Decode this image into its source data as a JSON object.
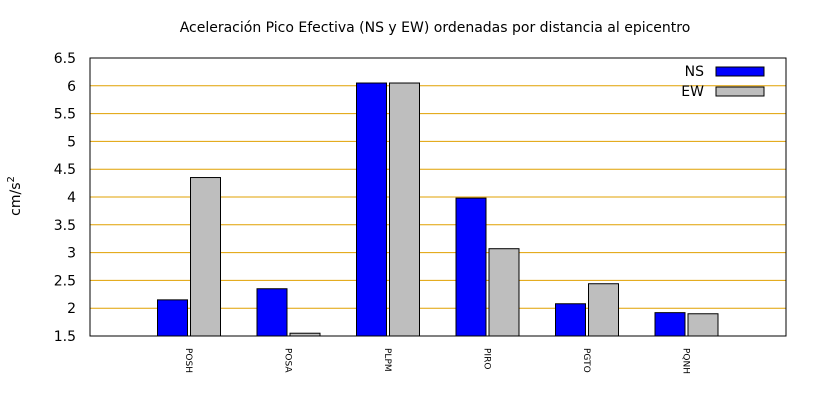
{
  "chart_data": {
    "type": "bar",
    "title": "Aceleración Pico Efectiva (NS y EW) ordenadas por distancia al epicentro",
    "ylabel": "cm/s²",
    "ylabel_base": "cm/s",
    "ylabel_exp": "2",
    "xlabel": "",
    "ylim": [
      1.5,
      6.5
    ],
    "yticks": [
      "1.5",
      "2",
      "2.5",
      "3",
      "3.5",
      "4",
      "4.5",
      "5",
      "5.5",
      "6",
      "6.5"
    ],
    "categories": [
      "POSH",
      "POSA",
      "PLPM",
      "PIRO",
      "PGTO",
      "PQNH"
    ],
    "series": [
      {
        "name": "NS",
        "color": "#0000ff",
        "values": [
          2.15,
          2.35,
          6.05,
          3.98,
          2.08,
          1.92
        ]
      },
      {
        "name": "EW",
        "color": "#bebebe",
        "values": [
          4.35,
          1.55,
          6.05,
          3.07,
          2.44,
          1.9
        ]
      }
    ],
    "grid": true,
    "grid_color": "#e0a000",
    "legend_position": "top-right"
  }
}
